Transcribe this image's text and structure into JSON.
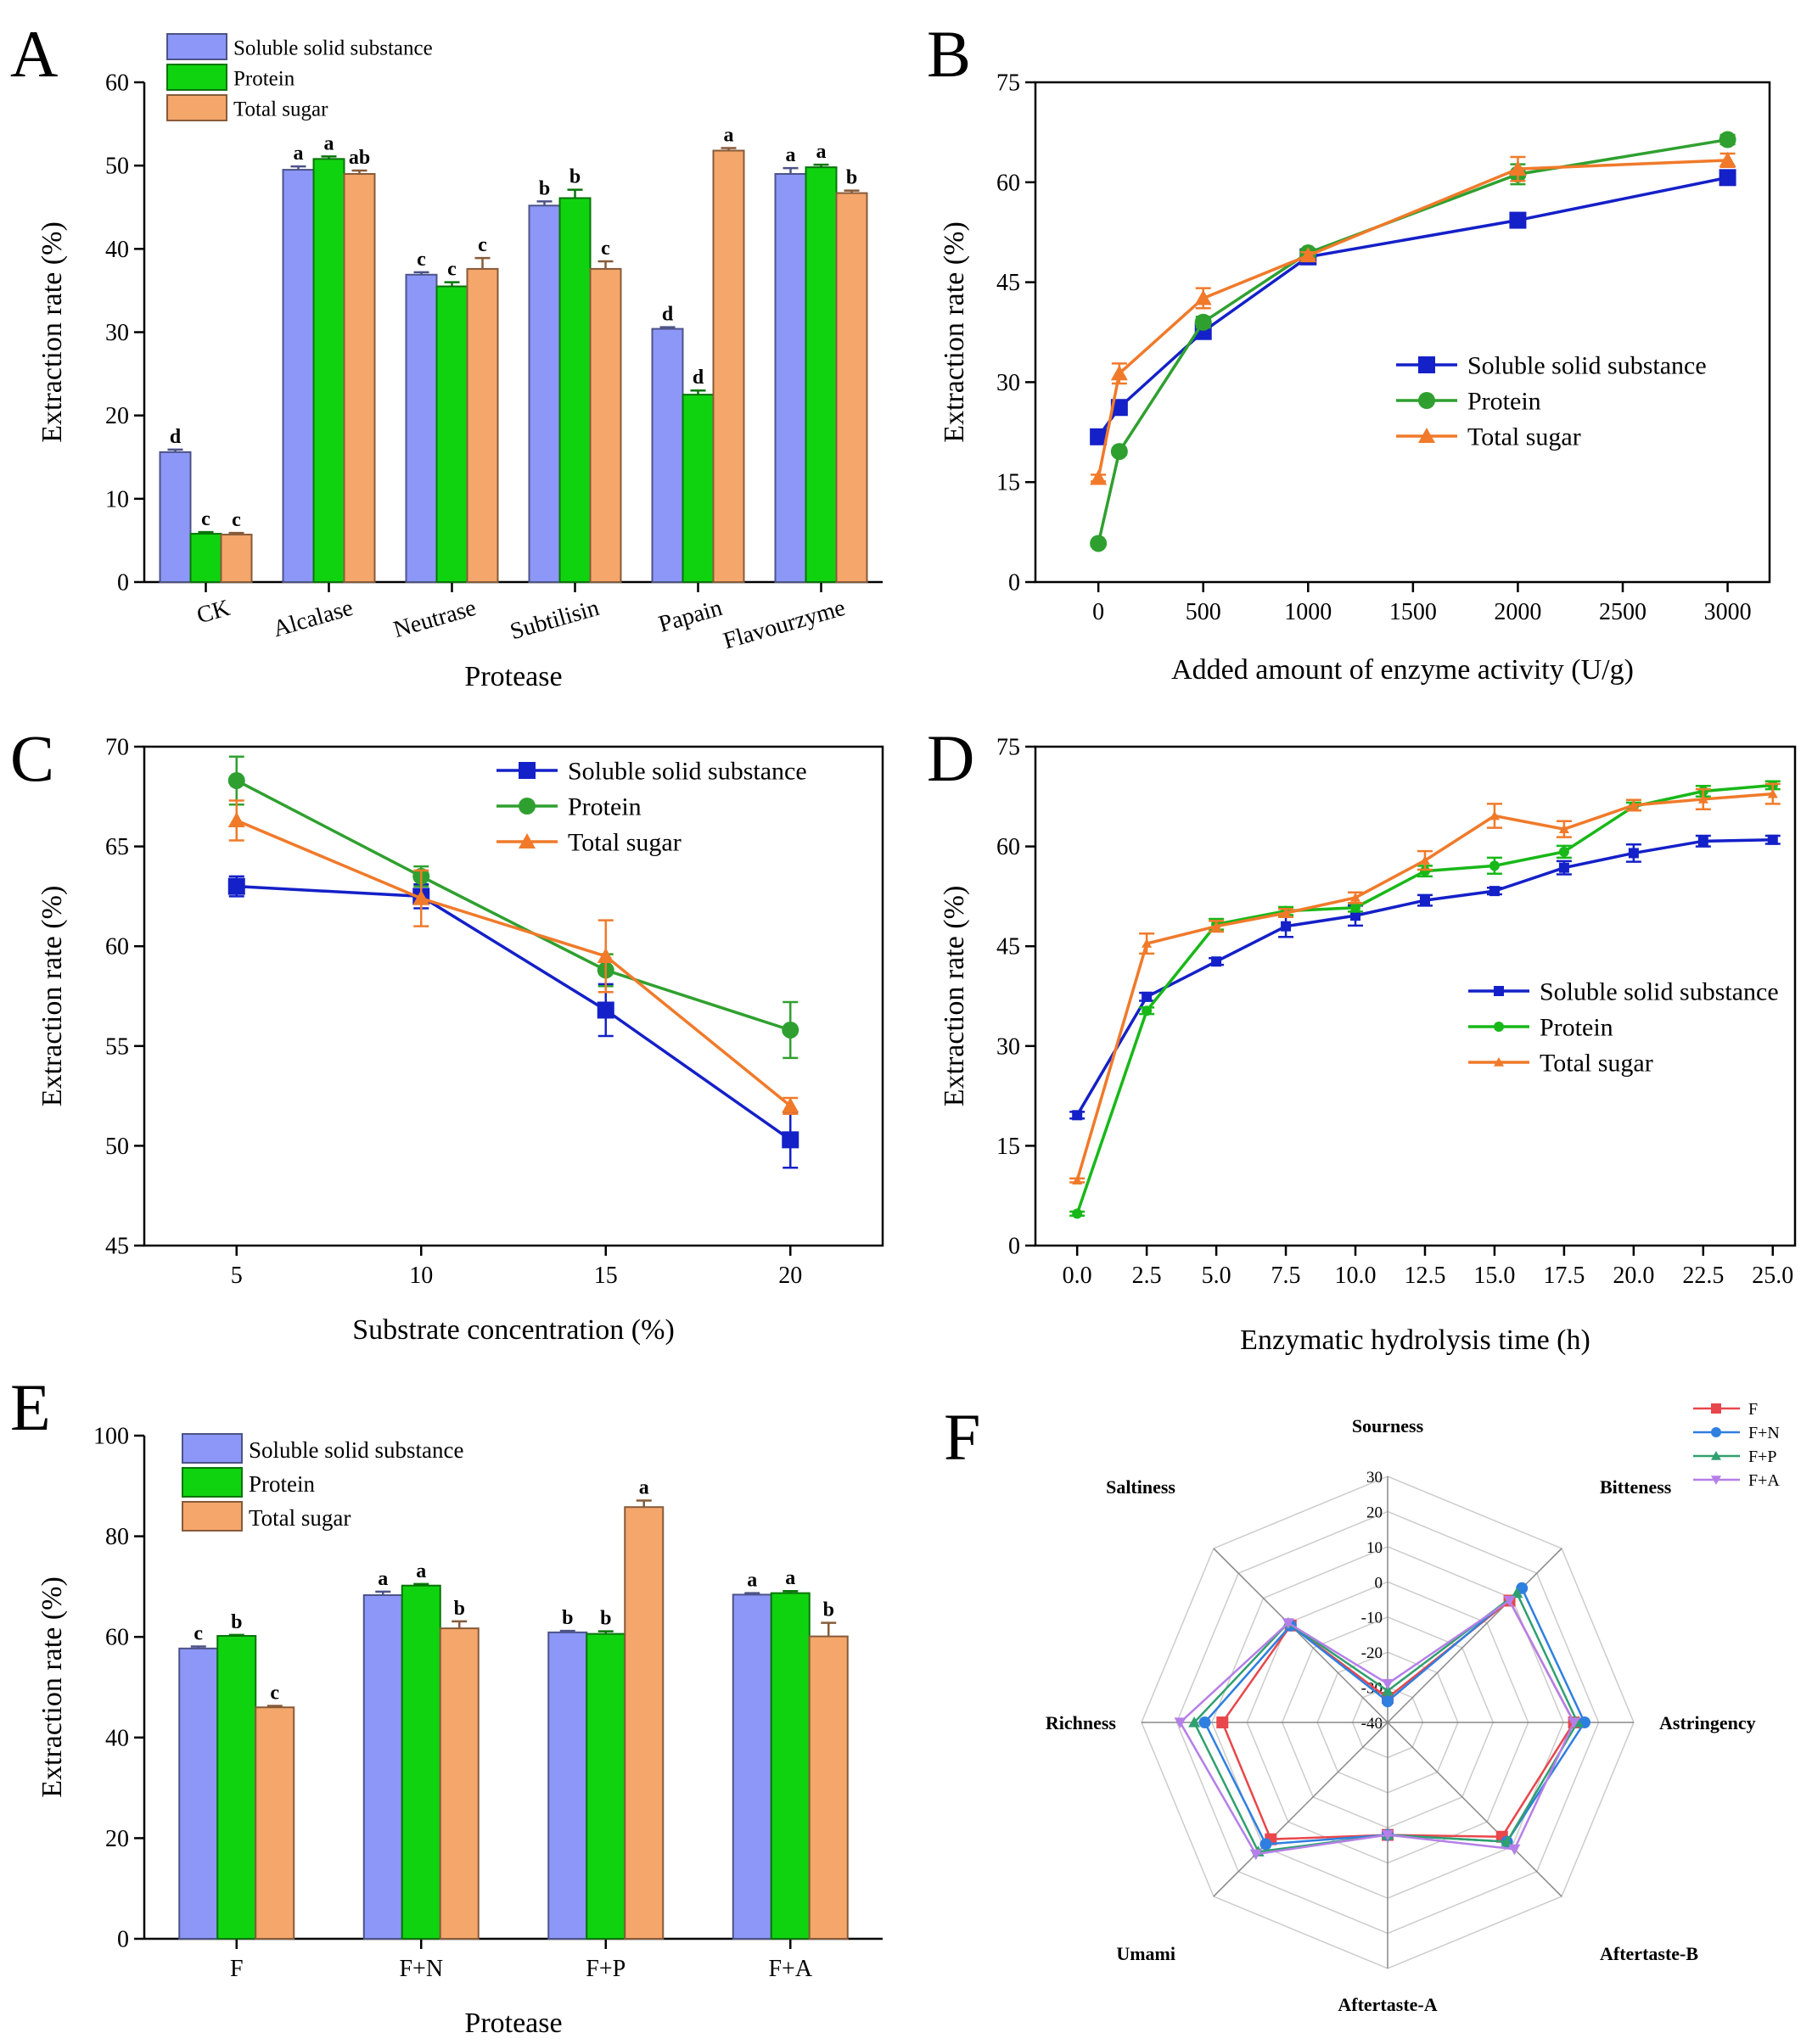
{
  "chart_data": [
    {
      "panel": "A",
      "type": "bar",
      "xlabel": "Protease",
      "ylabel": "Extraction rate (%)",
      "ylim": [
        0,
        60
      ],
      "yticks": [
        0,
        10,
        20,
        30,
        40,
        50,
        60
      ],
      "categories": [
        "CK",
        "Alcalase",
        "Neutrase",
        "Subtilisin",
        "Papain",
        "Flavourzyme"
      ],
      "series": [
        {
          "name": "Soluble solid substance",
          "color": "#8C97F8",
          "values": [
            15.6,
            49.5,
            36.9,
            45.2,
            30.4,
            49.0
          ],
          "errors": [
            0.3,
            0.4,
            0.3,
            0.5,
            0.2,
            0.7
          ],
          "letters": [
            "d",
            "a",
            "c",
            "b",
            "d",
            "a"
          ]
        },
        {
          "name": "Protein",
          "color": "#10D310",
          "values": [
            5.8,
            50.8,
            35.5,
            46.1,
            22.5,
            49.8
          ],
          "errors": [
            0.2,
            0.3,
            0.5,
            1.0,
            0.5,
            0.3
          ],
          "letters": [
            "c",
            "a",
            "c",
            "b",
            "d",
            "a"
          ]
        },
        {
          "name": "Total sugar",
          "color": "#F5A66A",
          "values": [
            5.7,
            49.0,
            37.6,
            37.6,
            51.8,
            46.7
          ],
          "errors": [
            0.2,
            0.4,
            1.3,
            0.9,
            0.3,
            0.3
          ],
          "letters": [
            "c",
            "ab",
            "c",
            "c",
            "a",
            "b"
          ]
        }
      ]
    },
    {
      "panel": "B",
      "type": "line",
      "xlabel": "Added amount of enzyme activity (U/g)",
      "ylabel": "Extraction rate (%)",
      "xlim": [
        -300,
        3200
      ],
      "ylim": [
        0,
        75
      ],
      "xticks": [
        0,
        500,
        1000,
        1500,
        2000,
        2500,
        3000
      ],
      "yticks": [
        0,
        15,
        30,
        45,
        60,
        75
      ],
      "x": [
        0,
        100,
        500,
        1000,
        2000,
        3000
      ],
      "series": [
        {
          "name": "Soluble solid substance",
          "color": "#1420C8",
          "marker": "square",
          "values": [
            21.8,
            26.2,
            37.6,
            48.8,
            54.3,
            60.7
          ],
          "errors": [
            0.8,
            0.6,
            0.6,
            0.5,
            0.6,
            0.8
          ]
        },
        {
          "name": "Protein",
          "color": "#2FA02F",
          "marker": "circle",
          "values": [
            5.8,
            19.6,
            39.0,
            49.4,
            61.2,
            66.4
          ],
          "errors": [
            0.4,
            0.5,
            0.8,
            0.6,
            1.5,
            0.7
          ]
        },
        {
          "name": "Total sugar",
          "color": "#F07A2A",
          "marker": "triangle",
          "values": [
            15.6,
            31.3,
            42.6,
            49.0,
            62.0,
            63.3
          ],
          "errors": [
            0.5,
            1.5,
            1.5,
            0.5,
            1.8,
            1.0
          ]
        }
      ]
    },
    {
      "panel": "C",
      "type": "line",
      "xlabel": "Substrate concentration (%)",
      "ylabel": "Extraction rate (%)",
      "xlim": [
        2.5,
        22.5
      ],
      "ylim": [
        45,
        70
      ],
      "xticks": [
        5,
        10,
        15,
        20
      ],
      "yticks": [
        45,
        50,
        55,
        60,
        65,
        70
      ],
      "x": [
        5,
        10,
        15,
        20
      ],
      "series": [
        {
          "name": "Soluble solid substance",
          "color": "#1420C8",
          "marker": "square",
          "values": [
            63.0,
            62.5,
            56.8,
            50.3
          ],
          "errors": [
            0.5,
            0.6,
            1.3,
            1.4
          ]
        },
        {
          "name": "Protein",
          "color": "#2FA02F",
          "marker": "circle",
          "values": [
            68.3,
            63.5,
            58.8,
            55.8
          ],
          "errors": [
            1.2,
            0.5,
            0.8,
            1.4
          ]
        },
        {
          "name": "Total sugar",
          "color": "#F07A2A",
          "marker": "triangle",
          "values": [
            66.3,
            62.4,
            59.5,
            52.0
          ],
          "errors": [
            1.0,
            1.4,
            1.8,
            0.4
          ]
        }
      ]
    },
    {
      "panel": "D",
      "type": "line",
      "xlabel": "Enzymatic hydrolysis time (h)",
      "ylabel": "Extraction rate (%)",
      "xlim": [
        -1.5,
        25.8
      ],
      "ylim": [
        0,
        75
      ],
      "xticks": [
        0.0,
        2.5,
        5.0,
        7.5,
        10.0,
        12.5,
        15.0,
        17.5,
        20.0,
        22.5,
        25.0
      ],
      "xtick_labels": [
        "0.0",
        "2.5",
        "5.0",
        "7.5",
        "10.0",
        "12.5",
        "15.0",
        "17.5",
        "20.0",
        "22.5",
        "25.0"
      ],
      "yticks": [
        0,
        15,
        30,
        45,
        60,
        75
      ],
      "x": [
        0,
        2.5,
        5,
        7.5,
        10,
        12.5,
        15,
        17.5,
        20,
        22.5,
        25
      ],
      "series": [
        {
          "name": "Soluble solid substance",
          "color": "#1420C8",
          "marker": "small-square",
          "values": [
            19.6,
            37.4,
            42.7,
            48.0,
            49.6,
            51.9,
            53.3,
            56.8,
            59.0,
            60.8,
            61.0
          ],
          "errors": [
            0.5,
            0.6,
            0.5,
            1.6,
            1.5,
            0.8,
            0.5,
            1.0,
            1.3,
            0.8,
            0.6
          ]
        },
        {
          "name": "Protein",
          "color": "#18B818",
          "marker": "small-circle",
          "values": [
            4.8,
            35.3,
            48.3,
            50.3,
            50.8,
            56.3,
            57.1,
            59.2,
            66.0,
            68.3,
            69.2
          ],
          "errors": [
            0.3,
            0.5,
            0.8,
            0.6,
            0.6,
            0.8,
            1.2,
            0.9,
            0.6,
            0.8,
            0.6
          ]
        },
        {
          "name": "Total sugar",
          "color": "#F07A2A",
          "marker": "small-triangle",
          "values": [
            9.8,
            45.4,
            48.0,
            50.0,
            52.3,
            57.9,
            64.6,
            62.6,
            66.2,
            67.1,
            67.9
          ],
          "errors": [
            0.3,
            1.5,
            0.8,
            0.6,
            0.8,
            1.4,
            1.8,
            1.2,
            0.8,
            1.5,
            1.5
          ]
        }
      ]
    },
    {
      "panel": "E",
      "type": "bar",
      "xlabel": "Protease",
      "ylabel": "Extraction rate (%)",
      "ylim": [
        0,
        100
      ],
      "yticks": [
        0,
        20,
        40,
        60,
        80,
        100
      ],
      "categories": [
        "F",
        "F+N",
        "F+P",
        "F+A"
      ],
      "series": [
        {
          "name": "Soluble solid substance",
          "color": "#8C97F8",
          "values": [
            57.7,
            68.3,
            60.9,
            68.4
          ],
          "errors": [
            0.4,
            0.7,
            0.3,
            0.3
          ],
          "letters": [
            "c",
            "a",
            "b",
            "a"
          ]
        },
        {
          "name": "Protein",
          "color": "#10D310",
          "values": [
            60.2,
            70.2,
            60.6,
            68.7
          ],
          "errors": [
            0.2,
            0.3,
            0.5,
            0.4
          ],
          "letters": [
            "b",
            "a",
            "b",
            "a"
          ]
        },
        {
          "name": "Total sugar",
          "color": "#F5A66A",
          "values": [
            46.0,
            61.7,
            85.8,
            60.1
          ],
          "errors": [
            0.3,
            1.4,
            1.3,
            2.7
          ],
          "letters": [
            "c",
            "b",
            "a",
            "b"
          ]
        }
      ]
    },
    {
      "panel": "F",
      "type": "radar",
      "axes": [
        "Sourness",
        "Bitteness",
        "Astringency",
        "Aftertaste-B",
        "Aftertaste-A",
        "Umami",
        "Richness",
        "Saltiness"
      ],
      "rlim": [
        -40,
        30
      ],
      "rticks": [
        -40,
        -30,
        -20,
        -10,
        0,
        10,
        20,
        30
      ],
      "rtick_labels": [
        "-40",
        "-30",
        "-20",
        "-10",
        "0",
        "10",
        "20",
        "30"
      ],
      "series": [
        {
          "name": "F",
          "color": "#E8474B",
          "marker": "square",
          "values": [
            -33,
            9,
            13,
            6,
            -8,
            7,
            7,
            -1
          ]
        },
        {
          "name": "F+N",
          "color": "#2F7FE0",
          "marker": "circle",
          "values": [
            -34,
            14,
            16,
            8,
            -8,
            9,
            12,
            -1
          ]
        },
        {
          "name": "F+P",
          "color": "#2FA06F",
          "marker": "triangle",
          "values": [
            -31,
            12,
            14,
            8,
            -8,
            12,
            15,
            0
          ]
        },
        {
          "name": "F+A",
          "color": "#B57FE8",
          "marker": "triangle-down",
          "values": [
            -29,
            9,
            13,
            11,
            -8,
            13,
            19,
            0
          ]
        }
      ]
    }
  ],
  "panel_labels": [
    "A",
    "B",
    "C",
    "D",
    "E",
    "F"
  ]
}
